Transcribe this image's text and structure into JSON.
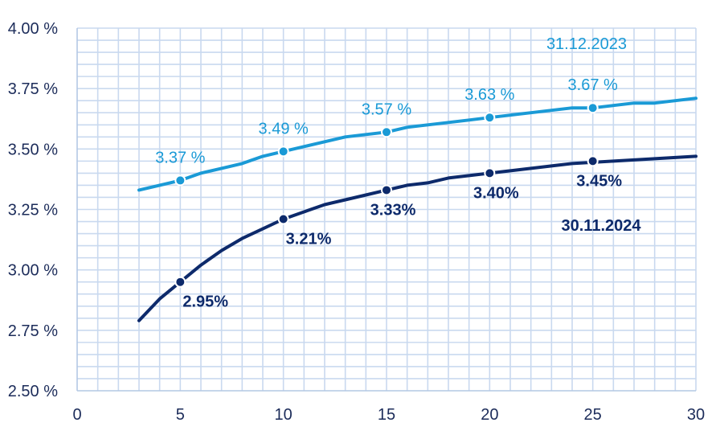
{
  "chart_data": {
    "type": "line",
    "xlim": [
      0,
      30
    ],
    "ylim": [
      2.5,
      4.0
    ],
    "x_ticks": [
      0,
      5,
      10,
      15,
      20,
      25,
      30
    ],
    "x_tick_labels": [
      "0",
      "5",
      "10",
      "15",
      "20",
      "25",
      "30"
    ],
    "y_ticks": [
      2.5,
      2.75,
      3.0,
      3.25,
      3.5,
      3.75,
      4.0
    ],
    "y_tick_labels": [
      "2.50 %",
      "2.75 %",
      "3.00 %",
      "3.25 %",
      "3.50 %",
      "3.75 %",
      "4.00 %"
    ],
    "grid": true,
    "series": [
      {
        "name": "31.12.2023",
        "color": "#1a9ad6",
        "x": [
          3,
          4,
          5,
          6,
          7,
          8,
          9,
          10,
          11,
          12,
          13,
          14,
          15,
          16,
          17,
          18,
          19,
          20,
          21,
          22,
          23,
          24,
          25,
          26,
          27,
          28,
          29,
          30
        ],
        "y": [
          3.33,
          3.35,
          3.37,
          3.4,
          3.42,
          3.44,
          3.47,
          3.49,
          3.51,
          3.53,
          3.55,
          3.56,
          3.57,
          3.59,
          3.6,
          3.61,
          3.62,
          3.63,
          3.64,
          3.65,
          3.66,
          3.67,
          3.67,
          3.68,
          3.69,
          3.69,
          3.7,
          3.71
        ],
        "markers": [
          {
            "x": 5,
            "y": 3.37,
            "label": "3.37 %"
          },
          {
            "x": 10,
            "y": 3.49,
            "label": "3.49 %"
          },
          {
            "x": 15,
            "y": 3.57,
            "label": "3.57 %"
          },
          {
            "x": 20,
            "y": 3.63,
            "label": "3.63 %"
          },
          {
            "x": 25,
            "y": 3.67,
            "label": "3.67 %"
          }
        ]
      },
      {
        "name": "30.11.2024",
        "color": "#0d2a6b",
        "x": [
          3,
          4,
          5,
          6,
          7,
          8,
          9,
          10,
          11,
          12,
          13,
          14,
          15,
          16,
          17,
          18,
          19,
          20,
          21,
          22,
          23,
          24,
          25,
          26,
          27,
          28,
          29,
          30
        ],
        "y": [
          2.79,
          2.88,
          2.95,
          3.02,
          3.08,
          3.13,
          3.17,
          3.21,
          3.24,
          3.27,
          3.29,
          3.31,
          3.33,
          3.35,
          3.36,
          3.38,
          3.39,
          3.4,
          3.41,
          3.42,
          3.43,
          3.44,
          3.445,
          3.45,
          3.455,
          3.46,
          3.465,
          3.47
        ],
        "markers": [
          {
            "x": 5,
            "y": 2.95,
            "label": "2.95%"
          },
          {
            "x": 10,
            "y": 3.21,
            "label": "3.21%"
          },
          {
            "x": 15,
            "y": 3.33,
            "label": "3.33%"
          },
          {
            "x": 20,
            "y": 3.4,
            "label": "3.40%"
          },
          {
            "x": 25,
            "y": 3.45,
            "label": "3.45%"
          }
        ]
      }
    ]
  }
}
